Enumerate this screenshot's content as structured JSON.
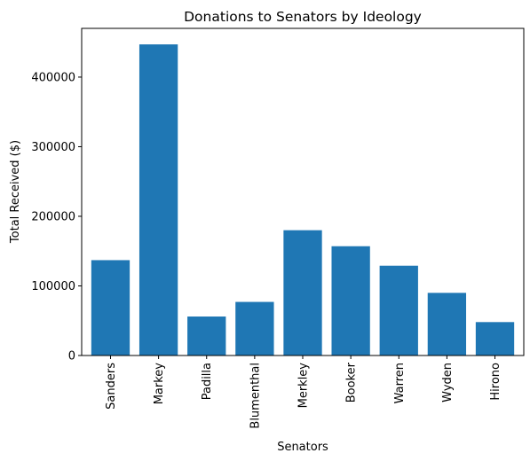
{
  "chart_data": {
    "type": "bar",
    "title": "Donations to Senators by Ideology",
    "xlabel": "Senators",
    "ylabel": "Total Received ($)",
    "categories": [
      "Sanders",
      "Markey",
      "Padilla",
      "Blumenthal",
      "Merkley",
      "Booker",
      "Warren",
      "Wyden",
      "Hirono"
    ],
    "values": [
      137000,
      447000,
      56000,
      77000,
      180000,
      157000,
      129000,
      90000,
      48000
    ],
    "ylim": [
      0,
      470000
    ],
    "yticks": [
      0,
      100000,
      200000,
      300000,
      400000
    ],
    "ytick_labels": [
      "0",
      "100000",
      "200000",
      "300000",
      "400000"
    ],
    "bar_color": "#1f77b4",
    "grid": false,
    "legend": "none"
  }
}
